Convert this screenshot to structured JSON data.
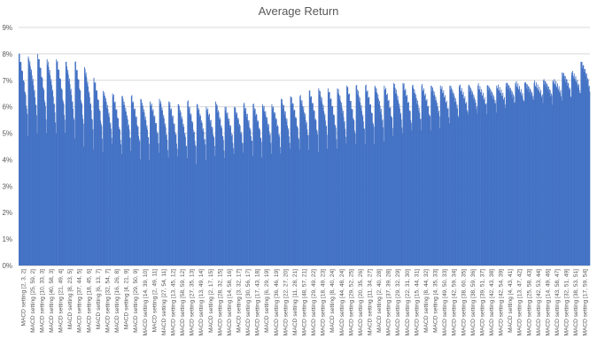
{
  "chart_data": {
    "type": "bar",
    "title": "Average Return",
    "xlabel": "",
    "ylabel": "",
    "ylim": [
      0,
      9
    ],
    "y_ticks": [
      "0%",
      "1%",
      "2%",
      "3%",
      "4%",
      "5%",
      "6%",
      "7%",
      "8%",
      "9%"
    ],
    "grid": true,
    "legend": "none",
    "color": "#4472c4",
    "categories": [
      "MACD setting [2, 3, 2]",
      "MACD setting [25, 59, 2]",
      "MACD setting [10, 33, 3]",
      "MACD setting [40, 58, 3]",
      "MACD setting [21, 49, 4]",
      "MACD setting [8, 23, 5]",
      "MACD setting [37, 44, 5]",
      "MACD setting [18, 45, 6]",
      "MACD setting [6, 13, 7]",
      "MACD setting [32, 54, 7]",
      "MACD setting [16, 26, 8]",
      "MACD setting [4, 21, 9]",
      "MACD setting [29, 50, 9]",
      "MACD setting [14, 39, 10]",
      "MACD setting [2, 49, 11]",
      "MACD setting [27, 54, 11]",
      "MACD setting [13, 45, 12]",
      "MACD setting [58, 59, 12]",
      "MACD setting [27, 35, 13]",
      "MACD setting [13, 49, 14]",
      "MACD setting [2, 17, 15]",
      "MACD setting [28, 32, 15]",
      "MACD setting [14, 58, 16]",
      "MACD setting [3, 32, 17]",
      "MACD setting [30, 56, 17]",
      "MACD setting [17, 43, 18]",
      "MACD setting [6, 29, 19]",
      "MACD setting [36, 46, 19]",
      "MACD setting [22, 27, 20]",
      "MACD setting [11, 28, 21]",
      "MACD setting [48, 57, 21]",
      "MACD setting [29, 49, 22]",
      "MACD setting [18, 49, 23]",
      "MACD setting [8, 40, 24]",
      "MACD setting [44, 48, 24]",
      "MACD setting [29, 52, 25]",
      "MACD setting [20, 35, 26]",
      "MACD setting [11, 34, 27]",
      "MACD setting [2, 40, 28]",
      "MACD setting [37, 39, 28]",
      "MACD setting [29, 32, 29]",
      "MACD setting [22, 31, 30]",
      "MACD setting [15, 44, 31]",
      "MACD setting [8, 44, 32]",
      "MACD setting [4, 35, 33]",
      "MACD setting [49, 50, 33]",
      "MACD setting [42, 59, 34]",
      "MACD setting [38, 60, 35]",
      "MACD setting [38, 59, 36]",
      "MACD setting [39, 51, 37]",
      "MACD setting [42, 43, 38]",
      "MACD setting [42, 54, 39]",
      "MACD setting [4, 43, 41]",
      "MACD setting [13, 47, 42]",
      "MACD setting [25, 58, 43]",
      "MACD setting [42, 53, 44]",
      "MACD setting [14, 49, 46]",
      "MACD setting [43, 58, 47]",
      "MACD setting [32, 51, 49]",
      "MACD setting [38, 53, 51]",
      "MACD setting [17, 59, 54]"
    ],
    "series": [
      {
        "values": [
          8.0,
          7.9,
          8.0,
          7.8,
          7.8,
          7.7,
          7.7,
          7.5,
          7.1,
          6.6,
          6.5,
          6.4,
          6.4,
          6.3,
          6.2,
          6.3,
          6.2,
          6.1,
          6.2,
          6.1,
          6.0,
          6.2,
          6.0,
          6.0,
          6.1,
          6.1,
          6.1,
          6.1,
          6.3,
          6.4,
          6.4,
          6.6,
          6.7,
          6.7,
          6.7,
          6.8,
          6.8,
          6.8,
          6.8,
          6.8,
          6.9,
          6.9,
          6.8,
          6.8,
          6.8,
          6.8,
          6.8,
          6.8,
          6.8,
          6.8,
          6.8,
          6.8,
          6.9,
          6.9,
          6.9,
          6.9,
          7.0,
          7.0,
          7.3,
          7.3,
          7.7
        ],
        "lows": [
          5.0,
          5.1,
          5.0,
          4.9,
          4.9,
          4.8,
          4.6,
          4.5,
          4.3,
          4.5,
          4.1,
          4.3,
          4.1,
          4.1,
          4.3,
          4.0,
          4.0,
          4.0,
          3.9,
          4.1,
          4.2,
          4.0,
          4.1,
          4.2,
          4.2,
          4.2,
          4.3,
          4.2,
          4.3,
          4.3,
          4.4,
          4.4,
          4.5,
          4.4,
          4.5,
          4.5,
          4.6,
          4.7,
          4.8,
          4.9,
          4.9,
          5.0,
          5.1,
          5.2,
          5.3,
          5.4,
          5.5,
          5.6,
          5.7,
          5.8,
          5.9,
          6.0,
          6.1,
          6.1,
          6.2,
          6.2,
          6.2,
          6.3,
          6.3,
          6.4,
          6.5
        ]
      }
    ]
  }
}
